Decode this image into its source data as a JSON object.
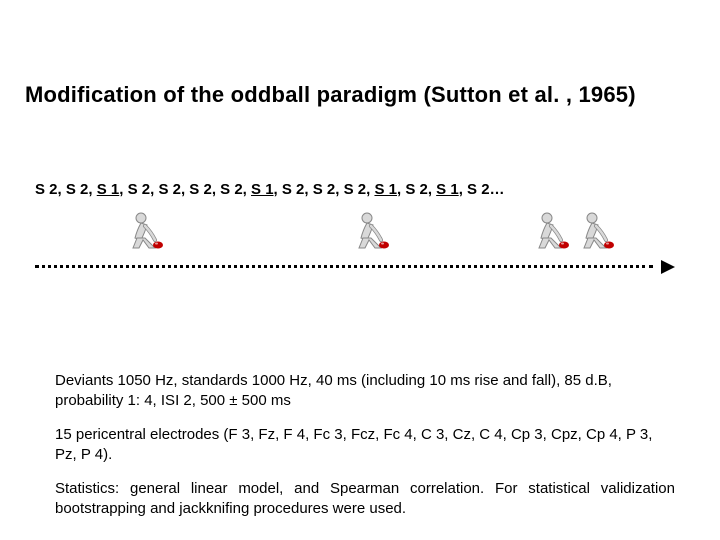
{
  "title": "Modification of the oddball paradigm (Sutton et al. , 1965)",
  "sequence": {
    "items": [
      {
        "label": "S 2",
        "deviant": false
      },
      {
        "label": "S 2",
        "deviant": false
      },
      {
        "label": "S 1",
        "deviant": true
      },
      {
        "label": "S 2",
        "deviant": false
      },
      {
        "label": "S 2",
        "deviant": false
      },
      {
        "label": "S 2",
        "deviant": false
      },
      {
        "label": "S 2",
        "deviant": false
      },
      {
        "label": "S 1",
        "deviant": true
      },
      {
        "label": "S 2",
        "deviant": false
      },
      {
        "label": "S 2",
        "deviant": false
      },
      {
        "label": "S 2",
        "deviant": false
      },
      {
        "label": "S 1",
        "deviant": true
      },
      {
        "label": "S 2",
        "deviant": false
      },
      {
        "label": "S 1",
        "deviant": true
      },
      {
        "label": "S 2…",
        "deviant": false
      }
    ],
    "separator": ",  "
  },
  "icons": {
    "positions_x": [
      127,
      353,
      533,
      578
    ],
    "body_color": "#d9d9d9",
    "outline_color": "#888888",
    "ball_color": "#c00000"
  },
  "timeline": {
    "dash_color": "#000000",
    "arrow_color": "#000000"
  },
  "paragraphs": {
    "p1": "Deviants 1050 Hz, standards 1000 Hz, 40 ms (including 10 ms rise and fall), 85 d.B, probability 1: 4, ISI 2, 500 ± 500 ms",
    "p2": "15 pericentral electrodes (F 3, Fz, F 4, Fc 3, Fcz, Fc 4, C 3, Cz, C 4, Cp 3, Cpz, Cp 4, P 3, Pz, P 4).",
    "p3": "Statistics: general linear model, and Spearman correlation. For statistical validization bootstrapping and jackknifing procedures were used."
  },
  "typography": {
    "title_fontsize": 22,
    "sequence_fontsize": 15,
    "body_fontsize": 15,
    "font_family": "Arial"
  },
  "colors": {
    "background": "#ffffff",
    "text": "#000000"
  }
}
